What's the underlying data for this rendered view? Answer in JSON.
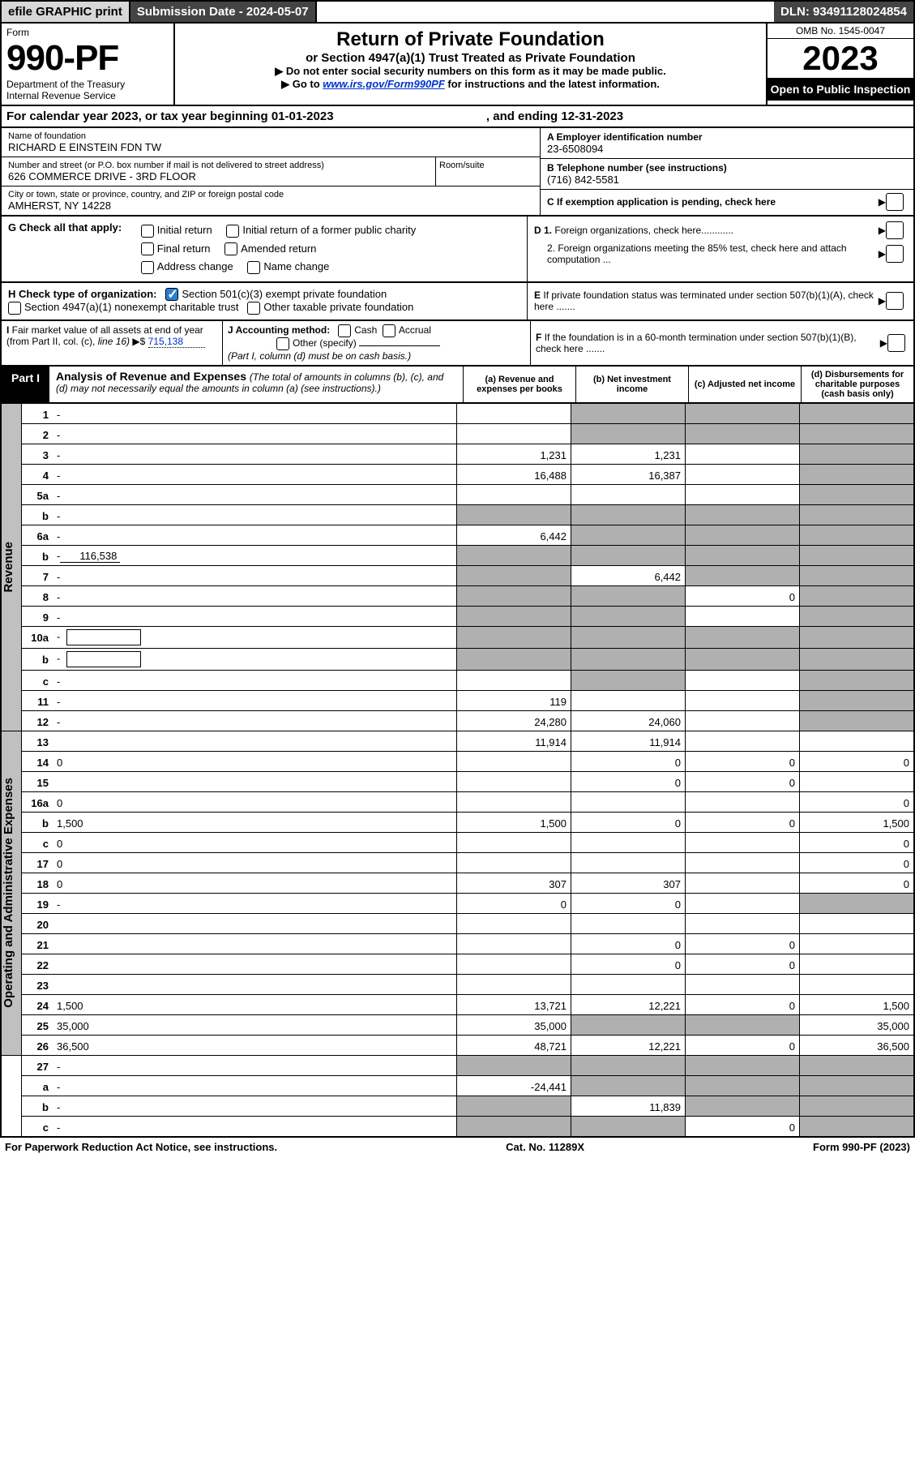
{
  "top": {
    "efile": "efile GRAPHIC print",
    "sub_label": "Submission Date - ",
    "sub_date": "2024-05-07",
    "dln": "DLN: 93491128024854"
  },
  "header": {
    "form": "Form",
    "number": "990-PF",
    "dept1": "Department of the Treasury",
    "dept2": "Internal Revenue Service",
    "title": "Return of Private Foundation",
    "subtitle": "or Section 4947(a)(1) Trust Treated as Private Foundation",
    "note1": "▶ Do not enter social security numbers on this form as it may be made public.",
    "note2l": "▶ Go to ",
    "note2link": "www.irs.gov/Form990PF",
    "note2r": " for instructions and the latest information.",
    "omb": "OMB No. 1545-0047",
    "year": "2023",
    "open": "Open to Public Inspection"
  },
  "cal": {
    "pre": "For calendar year 2023, or tax year beginning ",
    "begin": "01-01-2023",
    "mid": " , and ending ",
    "end": "12-31-2023"
  },
  "name": {
    "label": "Name of foundation",
    "value": "RICHARD E EINSTEIN FDN TW"
  },
  "addr": {
    "label": "Number and street (or P.O. box number if mail is not delivered to street address)",
    "value": "626 COMMERCE DRIVE - 3RD FLOOR",
    "room": "Room/suite"
  },
  "city": {
    "label": "City or town, state or province, country, and ZIP or foreign postal code",
    "value": "AMHERST, NY  14228"
  },
  "ein": {
    "label": "A Employer identification number",
    "value": "23-6508094"
  },
  "phone": {
    "label": "B Telephone number (see instructions)",
    "value": "(716) 842-5581"
  },
  "C": "C If exemption application is pending, check here",
  "G": {
    "label": "G Check all that apply:",
    "o1": "Initial return",
    "o2": "Initial return of a former public charity",
    "o3": "Final return",
    "o4": "Amended return",
    "o5": "Address change",
    "o6": "Name change"
  },
  "D": {
    "d1": "D 1. Foreign organizations, check here............",
    "d2": "2. Foreign organizations meeting the 85% test, check here and attach computation ..."
  },
  "H": {
    "label": "H Check type of organization:",
    "o1": "Section 501(c)(3) exempt private foundation",
    "o2": "Section 4947(a)(1) nonexempt charitable trust",
    "o3": "Other taxable private foundation"
  },
  "E": "E If private foundation status was terminated under section 507(b)(1)(A), check here .......",
  "I": {
    "label": "I Fair market value of all assets at end of year (from Part II, col. (c), line 16) ▶$ ",
    "value": "715,138"
  },
  "J": {
    "label": "J Accounting method:",
    "cash": "Cash",
    "accrual": "Accrual",
    "other": "Other (specify)",
    "note": "(Part I, column (d) must be on cash basis.)"
  },
  "F": "F If the foundation is in a 60-month termination under section 507(b)(1)(B), check here .......",
  "part1": {
    "label": "Part I",
    "title": "Analysis of Revenue and Expenses ",
    "titlenote": "(The total of amounts in columns (b), (c), and (d) may not necessarily equal the amounts in column (a) (see instructions).)",
    "ca": "(a) Revenue and expenses per books",
    "cb": "(b) Net investment income",
    "cc": "(c) Adjusted net income",
    "cd": "(d) Disbursements for charitable purposes (cash basis only)"
  },
  "side": {
    "rev": "Revenue",
    "op": "Operating and Administrative Expenses"
  },
  "rows": [
    {
      "n": "1",
      "d": "-",
      "a": "",
      "b": "-",
      "c": "-"
    },
    {
      "n": "2",
      "d": "-",
      "a": "",
      "b": "-",
      "c": "-",
      "check": true
    },
    {
      "n": "3",
      "d": "-",
      "a": "1,231",
      "b": "1,231",
      "c": ""
    },
    {
      "n": "4",
      "d": "-",
      "a": "16,488",
      "b": "16,387",
      "c": ""
    },
    {
      "n": "5a",
      "d": "-",
      "a": "",
      "b": "",
      "c": ""
    },
    {
      "n": "b",
      "d": "-",
      "a": "-",
      "b": "-",
      "c": "-"
    },
    {
      "n": "6a",
      "d": "-",
      "a": "6,442",
      "b": "-",
      "c": "-"
    },
    {
      "n": "b",
      "d": "-",
      "sub": "116,538",
      "a": "-",
      "b": "-",
      "c": "-"
    },
    {
      "n": "7",
      "d": "-",
      "a": "-",
      "b": "6,442",
      "c": "-"
    },
    {
      "n": "8",
      "d": "-",
      "a": "-",
      "b": "-",
      "c": "0"
    },
    {
      "n": "9",
      "d": "-",
      "a": "-",
      "b": "-",
      "c": ""
    },
    {
      "n": "10a",
      "d": "-",
      "box": true,
      "a": "-",
      "b": "-",
      "c": "-"
    },
    {
      "n": "b",
      "d": "-",
      "box": true,
      "a": "-",
      "b": "-",
      "c": "-"
    },
    {
      "n": "c",
      "d": "-",
      "a": "",
      "b": "-",
      "c": ""
    },
    {
      "n": "11",
      "d": "-",
      "a": "119",
      "b": "",
      "c": ""
    },
    {
      "n": "12",
      "d": "-",
      "a": "24,280",
      "b": "24,060",
      "c": "",
      "bold": true
    },
    {
      "n": "13",
      "d": "",
      "a": "11,914",
      "b": "11,914",
      "c": ""
    },
    {
      "n": "14",
      "d": "0",
      "a": "",
      "b": "0",
      "c": "0"
    },
    {
      "n": "15",
      "d": "",
      "a": "",
      "b": "0",
      "c": "0"
    },
    {
      "n": "16a",
      "d": "0",
      "a": "",
      "b": "",
      "c": ""
    },
    {
      "n": "b",
      "d": "1,500",
      "a": "1,500",
      "b": "0",
      "c": "0"
    },
    {
      "n": "c",
      "d": "0",
      "a": "",
      "b": "",
      "c": ""
    },
    {
      "n": "17",
      "d": "0",
      "a": "",
      "b": "",
      "c": ""
    },
    {
      "n": "18",
      "d": "0",
      "a": "307",
      "b": "307",
      "c": ""
    },
    {
      "n": "19",
      "d": "-",
      "a": "0",
      "b": "0",
      "c": ""
    },
    {
      "n": "20",
      "d": "",
      "a": "",
      "b": "",
      "c": ""
    },
    {
      "n": "21",
      "d": "",
      "a": "",
      "b": "0",
      "c": "0"
    },
    {
      "n": "22",
      "d": "",
      "a": "",
      "b": "0",
      "c": "0"
    },
    {
      "n": "23",
      "d": "",
      "a": "",
      "b": "",
      "c": ""
    },
    {
      "n": "24",
      "d": "1,500",
      "a": "13,721",
      "b": "12,221",
      "c": "0",
      "bold": true
    },
    {
      "n": "25",
      "d": "35,000",
      "a": "35,000",
      "b": "-",
      "c": "-"
    },
    {
      "n": "26",
      "d": "36,500",
      "a": "48,721",
      "b": "12,221",
      "c": "0",
      "bold": true
    },
    {
      "n": "27",
      "d": "-",
      "a": "-",
      "b": "-",
      "c": "-"
    },
    {
      "n": "a",
      "d": "-",
      "a": "-24,441",
      "b": "-",
      "c": "-",
      "bold": true
    },
    {
      "n": "b",
      "d": "-",
      "a": "-",
      "b": "11,839",
      "c": "-",
      "bold": true
    },
    {
      "n": "c",
      "d": "-",
      "a": "-",
      "b": "-",
      "c": "0",
      "bold": true
    }
  ],
  "footer": {
    "left": "For Paperwork Reduction Act Notice, see instructions.",
    "mid": "Cat. No. 11289X",
    "right": "Form 990-PF (2023)"
  },
  "shadecolor": "#b0b0b0"
}
